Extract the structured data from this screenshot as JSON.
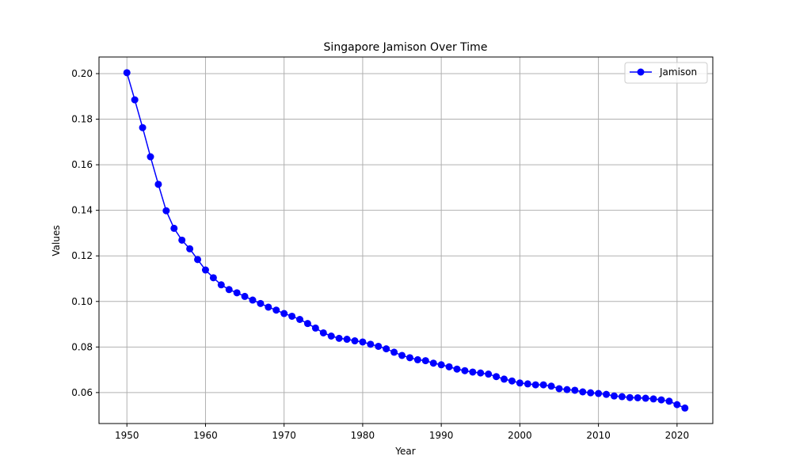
{
  "chart_data": {
    "type": "line",
    "title": "Singapore Jamison Over Time",
    "xlabel": "Year",
    "ylabel": "Values",
    "xlim": [
      1946.45,
      2024.55
    ],
    "ylim": [
      0.0464,
      0.2073
    ],
    "xticks": [
      1950,
      1960,
      1970,
      1980,
      1990,
      2000,
      2010,
      2020
    ],
    "yticks": [
      0.06,
      0.08,
      0.1,
      0.12,
      0.14,
      0.16,
      0.18,
      0.2
    ],
    "ytick_labels": [
      "0.06",
      "0.08",
      "0.10",
      "0.12",
      "0.14",
      "0.16",
      "0.18",
      "0.20"
    ],
    "grid": true,
    "legend_position": "upper-right",
    "colors": {
      "series": "#0000ff",
      "grid": "#b0b0b0",
      "axes": "#000000"
    },
    "series": [
      {
        "name": "Jamison",
        "x": [
          1950,
          1951,
          1952,
          1953,
          1954,
          1955,
          1956,
          1957,
          1958,
          1959,
          1960,
          1961,
          1962,
          1963,
          1964,
          1965,
          1966,
          1967,
          1968,
          1969,
          1970,
          1971,
          1972,
          1973,
          1974,
          1975,
          1976,
          1977,
          1978,
          1979,
          1980,
          1981,
          1982,
          1983,
          1984,
          1985,
          1986,
          1987,
          1988,
          1989,
          1990,
          1991,
          1992,
          1993,
          1994,
          1995,
          1996,
          1997,
          1998,
          1999,
          2000,
          2001,
          2002,
          2003,
          2004,
          2005,
          2006,
          2007,
          2008,
          2009,
          2010,
          2011,
          2012,
          2013,
          2014,
          2015,
          2016,
          2017,
          2018,
          2019,
          2020,
          2021
        ],
        "values": [
          0.2004,
          0.1885,
          0.1763,
          0.1635,
          0.1514,
          0.1398,
          0.1321,
          0.1269,
          0.1231,
          0.1184,
          0.1138,
          0.1104,
          0.1073,
          0.1052,
          0.1038,
          0.1022,
          0.1006,
          0.0991,
          0.0975,
          0.0962,
          0.0947,
          0.0935,
          0.0921,
          0.0903,
          0.0883,
          0.0862,
          0.0848,
          0.0838,
          0.0834,
          0.0827,
          0.0822,
          0.0812,
          0.0803,
          0.0792,
          0.0777,
          0.0763,
          0.0753,
          0.0744,
          0.074,
          0.0729,
          0.0722,
          0.0713,
          0.0703,
          0.0696,
          0.069,
          0.0686,
          0.0681,
          0.067,
          0.0659,
          0.0651,
          0.0642,
          0.0638,
          0.0634,
          0.0634,
          0.0628,
          0.0617,
          0.0613,
          0.061,
          0.0603,
          0.0599,
          0.0596,
          0.0592,
          0.0585,
          0.0582,
          0.0578,
          0.0577,
          0.0575,
          0.0572,
          0.0568,
          0.0562,
          0.0547,
          0.0532
        ]
      }
    ]
  }
}
